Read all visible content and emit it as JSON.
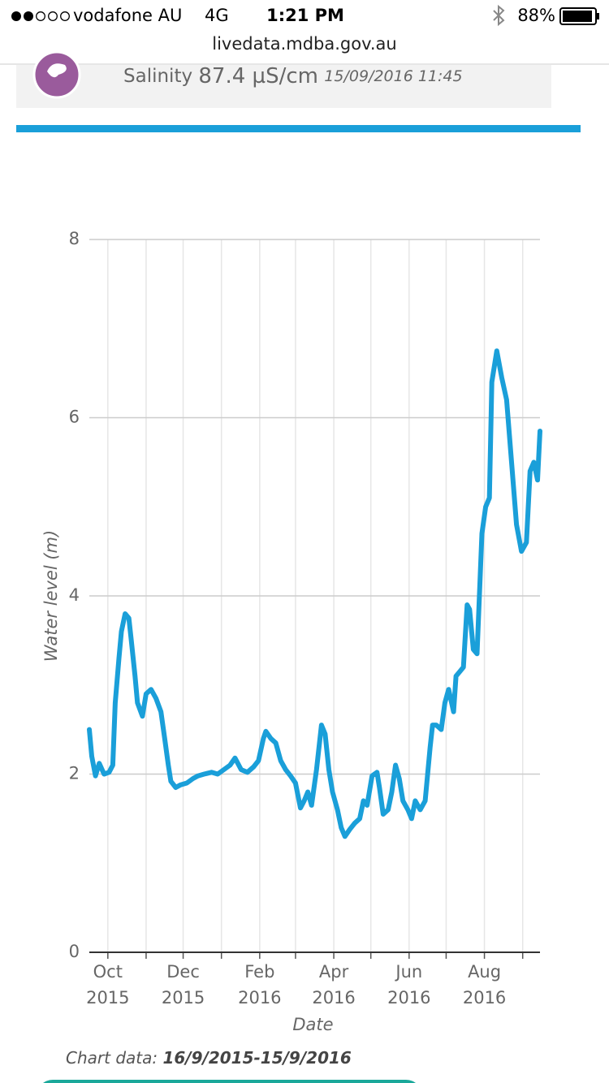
{
  "status_bar": {
    "carrier": "vodafone AU",
    "network": "4G",
    "time": "1:21 PM",
    "battery": "88%"
  },
  "url": "livedata.mdba.gov.au",
  "salinity": {
    "label": "Salinity",
    "value": "87.4 µS/cm",
    "timestamp": "15/09/2016 11:45"
  },
  "chart_data": {
    "type": "line",
    "y_label": "Water level (m)",
    "x_label": "Date",
    "color": "#1a9fd9",
    "grid": true,
    "xlim": [
      "2015-09-16",
      "2016-09-15"
    ],
    "xticks": [
      {
        "value": "2015-10-01",
        "label": "Oct 2015"
      },
      {
        "value": "2015-11-01",
        "label": null
      },
      {
        "value": "2015-12-01",
        "label": "Dec 2015"
      },
      {
        "value": "2016-01-01",
        "label": null
      },
      {
        "value": "2016-02-01",
        "label": "Feb 2016"
      },
      {
        "value": "2016-03-01",
        "label": null
      },
      {
        "value": "2016-04-01",
        "label": "Apr 2016"
      },
      {
        "value": "2016-05-01",
        "label": null
      },
      {
        "value": "2016-06-01",
        "label": "Jun 2016"
      },
      {
        "value": "2016-07-01",
        "label": null
      },
      {
        "value": "2016-08-01",
        "label": "Aug 2016"
      },
      {
        "value": "2016-09-01",
        "label": null
      }
    ],
    "ylim": [
      0,
      8
    ],
    "yticks": [
      0,
      2,
      4,
      6,
      8
    ],
    "x": [
      "2015-09-16",
      "2015-09-18",
      "2015-09-21",
      "2015-09-24",
      "2015-09-28",
      "2015-10-02",
      "2015-10-05",
      "2015-10-07",
      "2015-10-10",
      "2015-10-12",
      "2015-10-15",
      "2015-10-18",
      "2015-10-20",
      "2015-10-23",
      "2015-10-25",
      "2015-10-29",
      "2015-11-01",
      "2015-11-05",
      "2015-11-09",
      "2015-11-13",
      "2015-11-16",
      "2015-11-19",
      "2015-11-21",
      "2015-11-25",
      "2015-11-29",
      "2015-12-04",
      "2015-12-09",
      "2015-12-13",
      "2015-12-18",
      "2015-12-24",
      "2015-12-29",
      "2016-01-03",
      "2016-01-08",
      "2016-01-12",
      "2016-01-17",
      "2016-01-22",
      "2016-01-27",
      "2016-01-31",
      "2016-02-04",
      "2016-02-06",
      "2016-02-10",
      "2016-02-14",
      "2016-02-18",
      "2016-02-22",
      "2016-02-26",
      "2016-03-01",
      "2016-03-05",
      "2016-03-08",
      "2016-03-11",
      "2016-03-14",
      "2016-03-18",
      "2016-03-22",
      "2016-03-25",
      "2016-03-28",
      "2016-03-31",
      "2016-04-04",
      "2016-04-07",
      "2016-04-10",
      "2016-04-14",
      "2016-04-18",
      "2016-04-22",
      "2016-04-25",
      "2016-04-28",
      "2016-05-02",
      "2016-05-06",
      "2016-05-08",
      "2016-05-11",
      "2016-05-15",
      "2016-05-18",
      "2016-05-21",
      "2016-05-24",
      "2016-05-27",
      "2016-05-31",
      "2016-06-03",
      "2016-06-06",
      "2016-06-10",
      "2016-06-14",
      "2016-06-18",
      "2016-06-20",
      "2016-06-23",
      "2016-06-27",
      "2016-06-30",
      "2016-07-03",
      "2016-07-07",
      "2016-07-09",
      "2016-07-12",
      "2016-07-15",
      "2016-07-18",
      "2016-07-20",
      "2016-07-23",
      "2016-07-26",
      "2016-07-30",
      "2016-08-02",
      "2016-08-05",
      "2016-08-07",
      "2016-08-11",
      "2016-08-15",
      "2016-08-19",
      "2016-08-23",
      "2016-08-27",
      "2016-08-31",
      "2016-09-04",
      "2016-09-07",
      "2016-09-10",
      "2016-09-13",
      "2016-09-15"
    ],
    "values": [
      2.5,
      2.2,
      1.98,
      2.12,
      2.0,
      2.02,
      2.1,
      2.8,
      3.3,
      3.6,
      3.8,
      3.75,
      3.5,
      3.1,
      2.8,
      2.65,
      2.9,
      2.95,
      2.85,
      2.7,
      2.4,
      2.1,
      1.92,
      1.85,
      1.88,
      1.9,
      1.95,
      1.98,
      2.0,
      2.02,
      2.0,
      2.05,
      2.1,
      2.18,
      2.05,
      2.02,
      2.08,
      2.15,
      2.4,
      2.48,
      2.4,
      2.35,
      2.15,
      2.05,
      1.98,
      1.9,
      1.62,
      1.7,
      1.8,
      1.65,
      2.05,
      2.55,
      2.45,
      2.05,
      1.8,
      1.6,
      1.4,
      1.3,
      1.38,
      1.45,
      1.5,
      1.7,
      1.65,
      1.98,
      2.02,
      1.85,
      1.55,
      1.6,
      1.8,
      2.1,
      1.95,
      1.7,
      1.6,
      1.5,
      1.7,
      1.6,
      1.7,
      2.3,
      2.55,
      2.55,
      2.5,
      2.8,
      2.95,
      2.7,
      3.1,
      3.15,
      3.2,
      3.9,
      3.85,
      3.4,
      3.35,
      4.7,
      5.0,
      5.1,
      6.4,
      6.75,
      6.45,
      6.2,
      5.5,
      4.8,
      4.5,
      4.6,
      5.4,
      5.5,
      5.3,
      5.85
    ]
  },
  "footer": {
    "label": "Chart data:",
    "range": "16/9/2015-15/9/2016"
  }
}
